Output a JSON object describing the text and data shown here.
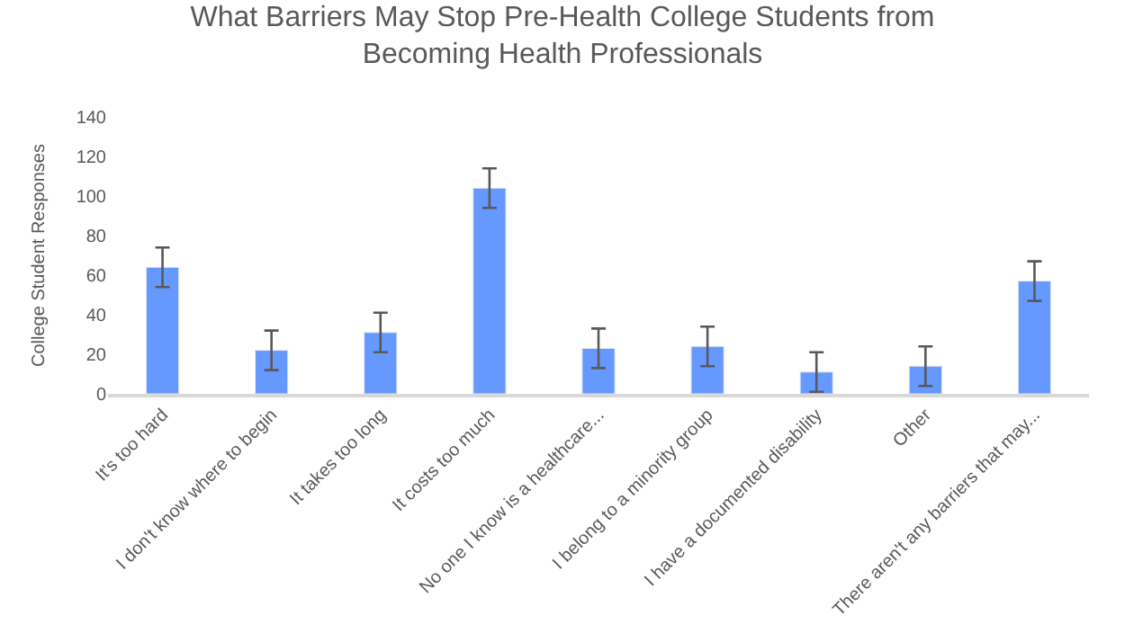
{
  "chart_data": {
    "type": "bar",
    "title": "What Barriers May Stop Pre-Health College Students from Becoming Health Professionals",
    "ylabel": "College Student Responses",
    "categories": [
      "It's too hard",
      "I don't know where to begin",
      "It takes too long",
      "It costs too much",
      "No one I know is a healthcare...",
      "I belong to a minority group",
      "I have a documented disability",
      "Other",
      "There aren't any barriers that may..."
    ],
    "values": [
      64,
      22,
      31,
      104,
      23,
      24,
      11,
      14,
      57
    ],
    "errors": [
      10,
      10,
      10,
      10,
      10,
      10,
      10,
      10,
      10
    ],
    "color": "#6699ff",
    "ylim": [
      0,
      140
    ],
    "yticks": [
      0,
      20,
      40,
      60,
      80,
      100,
      120,
      140
    ],
    "grid": false
  }
}
